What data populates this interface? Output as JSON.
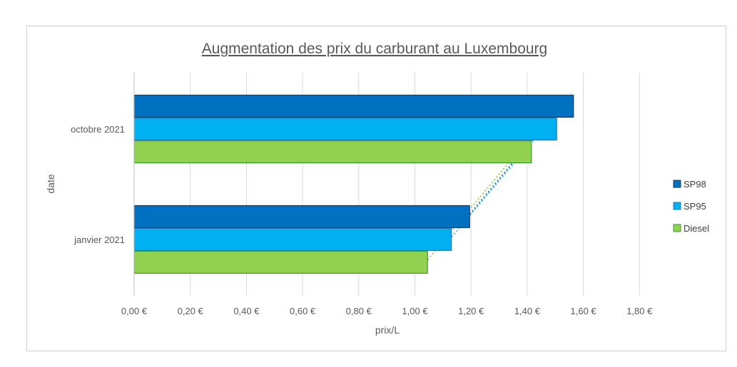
{
  "chart_data": {
    "type": "bar",
    "orientation": "horizontal",
    "title": "Augmentation des prix du carburant au Luxembourg",
    "xlabel": "prix/L",
    "ylabel": "date",
    "categories": [
      "janvier 2021",
      "octobre 2021"
    ],
    "series": [
      {
        "name": "SP98",
        "values": [
          1.195,
          1.565
        ],
        "color": "#0070c0",
        "stroke": "#1f3864"
      },
      {
        "name": "SP95",
        "values": [
          1.13,
          1.505
        ],
        "color": "#00b0f0",
        "stroke": "#2e75b6"
      },
      {
        "name": "Diesel",
        "values": [
          1.045,
          1.415
        ],
        "color": "#92d050",
        "stroke": "#3a9a32"
      }
    ],
    "trendlines": [
      {
        "series": "SP98",
        "style": "dotted",
        "color": "#2e75b6",
        "from": 1.195,
        "to": 1.565
      },
      {
        "series": "SP95",
        "style": "dotted",
        "color": "#3eb6e6",
        "from": 1.13,
        "to": 1.505
      },
      {
        "series": "Diesel",
        "style": "dotted",
        "color": "#92d050",
        "from": 1.045,
        "to": 1.415
      }
    ],
    "xlim": [
      0,
      1.8
    ],
    "xticks": [
      0,
      0.2,
      0.4,
      0.6,
      0.8,
      1.0,
      1.2,
      1.4,
      1.6,
      1.8
    ],
    "xtick_labels": [
      "0,00 €",
      "0,20 €",
      "0,40 €",
      "0,60 €",
      "0,80 €",
      "1,00 €",
      "1,20 €",
      "1,40 €",
      "1,60 €",
      "1,80 €"
    ],
    "grid": true,
    "legend_position": "right"
  }
}
